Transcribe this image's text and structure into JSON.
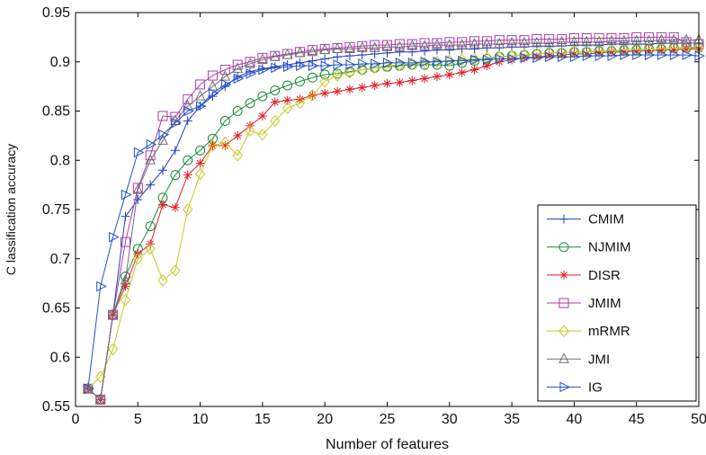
{
  "chart_data": {
    "type": "line",
    "xlabel": "Number of features",
    "ylabel": "C lassification accuracy",
    "xlim": [
      0,
      50
    ],
    "ylim": [
      0.55,
      0.95
    ],
    "x_ticks": [
      0,
      5,
      10,
      15,
      20,
      25,
      30,
      35,
      40,
      45,
      50
    ],
    "y_ticks": [
      0.55,
      0.6,
      0.65,
      0.7,
      0.75,
      0.8,
      0.85,
      0.9,
      0.95
    ],
    "y_tick_labels": [
      "0.55",
      "0.6",
      "0.65",
      "0.7",
      "0.75",
      "0.8",
      "0.85",
      "0.9",
      "0.95"
    ],
    "grid": false,
    "legend_position": "bottom-right",
    "x": [
      1,
      2,
      3,
      4,
      5,
      6,
      7,
      8,
      9,
      10,
      11,
      12,
      13,
      14,
      15,
      16,
      17,
      18,
      19,
      20,
      21,
      22,
      23,
      24,
      25,
      26,
      27,
      28,
      29,
      30,
      31,
      32,
      33,
      34,
      35,
      36,
      37,
      38,
      39,
      40,
      41,
      42,
      43,
      44,
      45,
      46,
      47,
      48,
      49,
      50
    ],
    "series": [
      {
        "name": "CMIM",
        "color": "#1f3fbf",
        "marker": "plus",
        "values": [
          0.568,
          0.557,
          0.643,
          0.743,
          0.76,
          0.775,
          0.79,
          0.81,
          0.84,
          0.855,
          0.865,
          0.875,
          0.885,
          0.89,
          0.893,
          0.895,
          0.897,
          0.899,
          0.901,
          0.903,
          0.905,
          0.906,
          0.907,
          0.908,
          0.909,
          0.91,
          0.91,
          0.911,
          0.912,
          0.912,
          0.913,
          0.913,
          0.914,
          0.914,
          0.915,
          0.915,
          0.916,
          0.916,
          0.916,
          0.917,
          0.917,
          0.917,
          0.918,
          0.918,
          0.918,
          0.918,
          0.919,
          0.919,
          0.919,
          0.919
        ]
      },
      {
        "name": "NJMIM",
        "color": "#1a8a3a",
        "marker": "circle",
        "values": [
          0.568,
          0.557,
          0.643,
          0.682,
          0.71,
          0.733,
          0.762,
          0.785,
          0.8,
          0.81,
          0.822,
          0.84,
          0.85,
          0.858,
          0.865,
          0.871,
          0.876,
          0.88,
          0.884,
          0.887,
          0.888,
          0.89,
          0.892,
          0.894,
          0.895,
          0.896,
          0.897,
          0.897,
          0.897,
          0.896,
          0.899,
          0.901,
          0.903,
          0.905,
          0.906,
          0.907,
          0.908,
          0.909,
          0.909,
          0.91,
          0.91,
          0.911,
          0.911,
          0.912,
          0.912,
          0.913,
          0.913,
          0.914,
          0.914,
          0.915
        ]
      },
      {
        "name": "DISR",
        "color": "#e0202a",
        "marker": "star",
        "values": [
          0.568,
          0.557,
          0.643,
          0.672,
          0.705,
          0.715,
          0.755,
          0.752,
          0.785,
          0.797,
          0.815,
          0.815,
          0.825,
          0.835,
          0.845,
          0.859,
          0.861,
          0.862,
          0.866,
          0.868,
          0.87,
          0.872,
          0.874,
          0.876,
          0.878,
          0.879,
          0.881,
          0.883,
          0.885,
          0.887,
          0.889,
          0.892,
          0.896,
          0.9,
          0.902,
          0.904,
          0.905,
          0.906,
          0.907,
          0.908,
          0.908,
          0.909,
          0.91,
          0.91,
          0.911,
          0.911,
          0.912,
          0.912,
          0.913,
          0.913
        ]
      },
      {
        "name": "JMIM",
        "color": "#b03ab0",
        "marker": "square",
        "values": [
          0.568,
          0.557,
          0.643,
          0.717,
          0.772,
          0.805,
          0.845,
          0.844,
          0.862,
          0.877,
          0.886,
          0.892,
          0.897,
          0.9,
          0.904,
          0.906,
          0.908,
          0.91,
          0.912,
          0.913,
          0.914,
          0.915,
          0.916,
          0.917,
          0.917,
          0.918,
          0.918,
          0.919,
          0.919,
          0.92,
          0.92,
          0.921,
          0.921,
          0.922,
          0.922,
          0.922,
          0.923,
          0.923,
          0.923,
          0.924,
          0.924,
          0.924,
          0.924,
          0.924,
          0.925,
          0.925,
          0.925,
          0.925,
          0.92,
          0.918
        ]
      },
      {
        "name": "mRMR",
        "color": "#c8c820",
        "marker": "diamond",
        "values": [
          0.568,
          0.58,
          0.608,
          0.658,
          0.7,
          0.71,
          0.678,
          0.688,
          0.75,
          0.786,
          0.815,
          0.818,
          0.805,
          0.83,
          0.826,
          0.84,
          0.853,
          0.858,
          0.866,
          0.88,
          0.886,
          0.889,
          0.892,
          0.894,
          0.896,
          0.897,
          0.898,
          0.899,
          0.9,
          0.901,
          0.902,
          0.903,
          0.904,
          0.905,
          0.906,
          0.907,
          0.908,
          0.909,
          0.909,
          0.91,
          0.91,
          0.911,
          0.911,
          0.912,
          0.912,
          0.913,
          0.913,
          0.914,
          0.914,
          0.914
        ]
      },
      {
        "name": "JMI",
        "color": "#707070",
        "marker": "triangle-up",
        "values": [
          0.568,
          0.557,
          0.643,
          0.678,
          0.77,
          0.8,
          0.82,
          0.84,
          0.855,
          0.865,
          0.875,
          0.885,
          0.893,
          0.898,
          0.902,
          0.905,
          0.907,
          0.909,
          0.91,
          0.912,
          0.913,
          0.913,
          0.914,
          0.914,
          0.915,
          0.915,
          0.916,
          0.916,
          0.917,
          0.917,
          0.917,
          0.918,
          0.918,
          0.918,
          0.919,
          0.919,
          0.919,
          0.919,
          0.92,
          0.92,
          0.92,
          0.92,
          0.921,
          0.921,
          0.921,
          0.921,
          0.922,
          0.922,
          0.922,
          0.922
        ]
      },
      {
        "name": "IG",
        "color": "#2050d0",
        "marker": "triangle-right",
        "values": [
          0.568,
          0.672,
          0.722,
          0.765,
          0.808,
          0.816,
          0.826,
          0.838,
          0.85,
          0.855,
          0.868,
          0.877,
          0.883,
          0.888,
          0.892,
          0.894,
          0.895,
          0.896,
          0.896,
          0.896,
          0.897,
          0.897,
          0.898,
          0.898,
          0.899,
          0.899,
          0.899,
          0.9,
          0.9,
          0.901,
          0.901,
          0.902,
          0.902,
          0.903,
          0.903,
          0.904,
          0.904,
          0.905,
          0.905,
          0.905,
          0.906,
          0.906,
          0.906,
          0.907,
          0.907,
          0.907,
          0.907,
          0.907,
          0.907,
          0.906
        ]
      }
    ]
  }
}
